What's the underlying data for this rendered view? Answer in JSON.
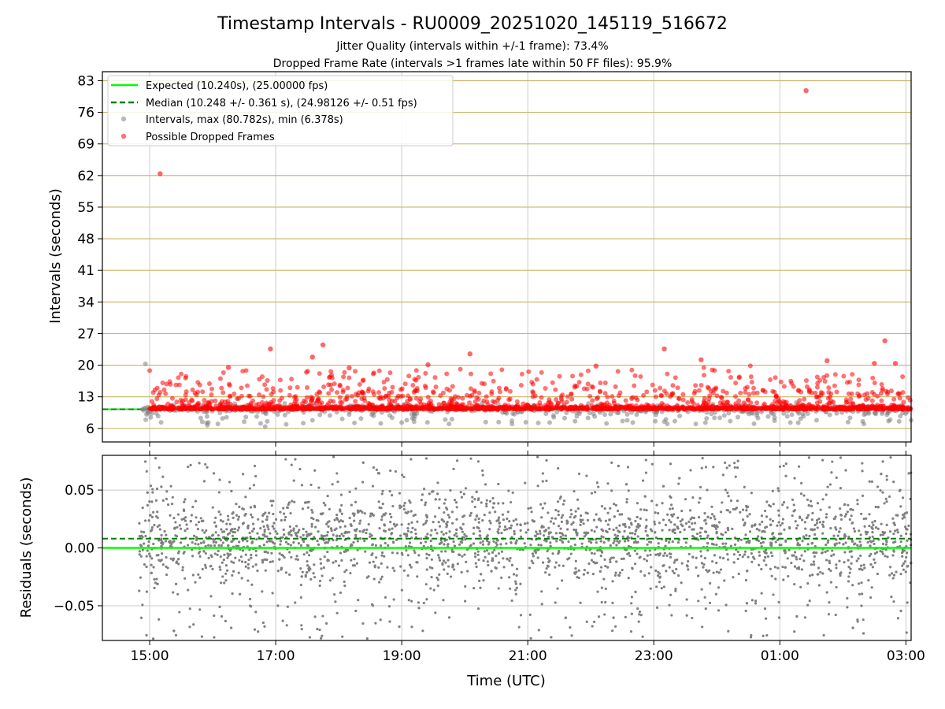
{
  "colors": {
    "expected": "#00ff00",
    "median": "#008000",
    "intervals": "#808080",
    "dropped": "#ff0000",
    "hgrid_top": "#c8b464",
    "grid": "#cccccc"
  },
  "chart_data": [
    {
      "type": "scatter",
      "title": "Timestamp Intervals - RU0009_20251020_145119_516672",
      "subtitle_1": "Jitter Quality (intervals within +/-1 frame): 73.4%",
      "subtitle_2": "Dropped Frame Rate (intervals >1 frames late within 50 FF files): 95.9%",
      "xlabel": "",
      "ylabel": "Intervals (seconds)",
      "x_range_hours_utc": [
        "14:15",
        "03:05"
      ],
      "ylim": [
        3,
        85
      ],
      "yticks": [
        6,
        13,
        20,
        27,
        34,
        41,
        48,
        55,
        62,
        69,
        76,
        83
      ],
      "xticks": [
        "15:00",
        "17:00",
        "19:00",
        "21:00",
        "23:00",
        "01:00",
        "03:00"
      ],
      "grid": true,
      "legend_position": "upper-left",
      "legend": [
        "Expected (10.240s), (25.00000 fps)",
        "Median (10.248 +/- 0.361 s), (24.98126 +/- 0.51 fps)",
        "Intervals, max (80.782s), min (6.378s)",
        "Possible Dropped Frames"
      ],
      "expected_interval": 10.24,
      "median_interval": 10.248,
      "max_interval": 80.782,
      "min_interval": 6.378,
      "series": [
        {
          "name": "Expected (10.240s), (25.00000 fps)",
          "kind": "hline",
          "y": 10.24
        },
        {
          "name": "Median (10.248 +/- 0.361 s), (24.98126 +/- 0.51 fps)",
          "kind": "hline-dashed",
          "y": 10.248
        },
        {
          "name": "Intervals, max (80.782s), min (6.378s)",
          "kind": "scatter",
          "points": [
            [
              "14:56",
              20.3
            ],
            [
              "14:55",
              10.4
            ],
            [
              "14:57",
              9.1
            ],
            [
              "15:55",
              6.7
            ],
            [
              "16:05",
              7.0
            ],
            [
              "16:30",
              7.5
            ],
            [
              "16:50",
              6.4
            ],
            [
              "17:10",
              6.9
            ],
            [
              "17:35",
              7.8
            ],
            [
              "18:15",
              7.2
            ],
            [
              "18:40",
              7.1
            ],
            [
              "19:00",
              7.3
            ],
            [
              "19:45",
              7.0
            ],
            [
              "20:20",
              7.4
            ],
            [
              "20:45",
              7.0
            ],
            [
              "21:10",
              7.2
            ],
            [
              "21:45",
              7.6
            ],
            [
              "22:15",
              7.1
            ],
            [
              "22:40",
              7.3
            ],
            [
              "23:10",
              7.5
            ],
            [
              "23:40",
              7.0
            ],
            [
              "00:20",
              8.5
            ],
            [
              "00:55",
              7.7
            ],
            [
              "01:10",
              7.3
            ],
            [
              "01:35",
              7.8
            ],
            [
              "02:05",
              7.4
            ],
            [
              "02:20",
              7.0
            ],
            [
              "02:45",
              7.9
            ],
            [
              "03:05",
              7.8
            ]
          ]
        },
        {
          "name": "Possible Dropped Frames",
          "kind": "scatter",
          "points": [
            [
              "15:10",
              62.4
            ],
            [
              "01:25",
              80.8
            ],
            [
              "16:55",
              23.6
            ],
            [
              "17:45",
              24.5
            ],
            [
              "23:10",
              23.6
            ],
            [
              "02:40",
              25.4
            ],
            [
              "20:05",
              22.5
            ],
            [
              "17:35",
              21.8
            ],
            [
              "16:15",
              19.5
            ],
            [
              "18:10",
              19.4
            ],
            [
              "19:25",
              20.1
            ],
            [
              "22:05",
              19.8
            ],
            [
              "23:45",
              21.2
            ],
            [
              "01:45",
              21.0
            ],
            [
              "02:30",
              20.4
            ],
            [
              "02:50",
              20.4
            ]
          ]
        }
      ]
    },
    {
      "type": "scatter",
      "title": "",
      "xlabel": "Time (UTC)",
      "ylabel": "Residuals (seconds)",
      "ylim": [
        -0.08,
        0.08
      ],
      "yticks": [
        "−0.05",
        "0.00",
        "0.05"
      ],
      "ytick_values": [
        -0.05,
        0.0,
        0.05
      ],
      "xticks": [
        "15:00",
        "17:00",
        "19:00",
        "21:00",
        "23:00",
        "01:00",
        "03:00"
      ],
      "grid": true,
      "series": [
        {
          "name": "",
          "kind": "hline",
          "y": 0.0
        },
        {
          "name": "",
          "kind": "hline-dashed",
          "y": 0.008
        },
        {
          "name": "",
          "kind": "scatter-cloud",
          "x_range": [
            "14:50",
            "03:05"
          ],
          "y_range": [
            -0.08,
            0.08
          ]
        }
      ]
    }
  ]
}
